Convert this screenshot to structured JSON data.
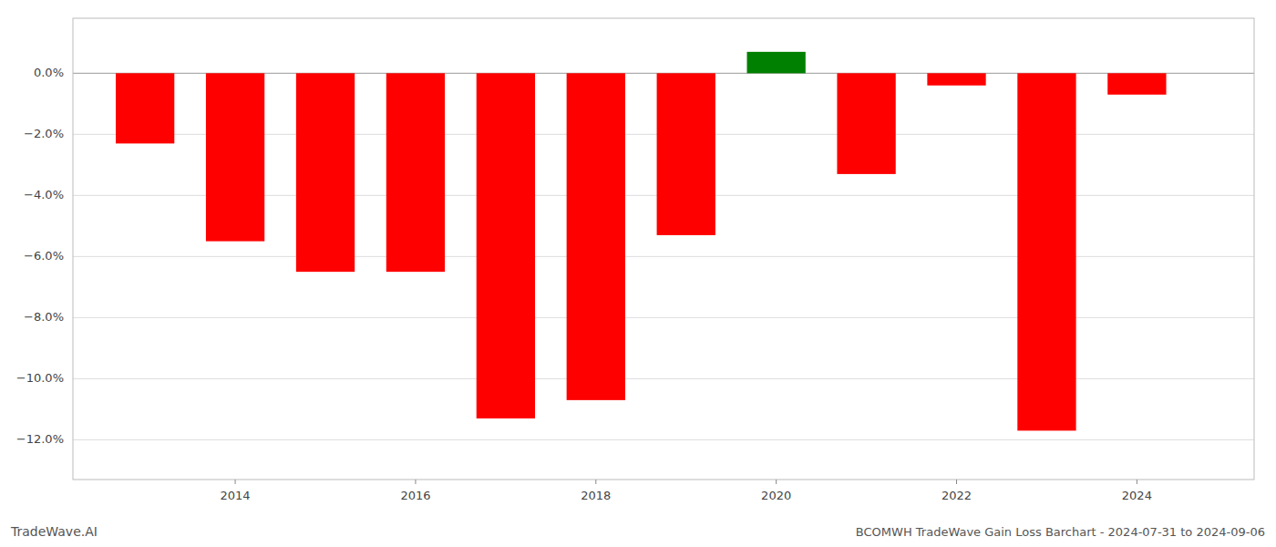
{
  "chart_data": {
    "type": "bar",
    "x": [
      2013,
      2014,
      2015,
      2016,
      2017,
      2018,
      2019,
      2020,
      2021,
      2022,
      2023,
      2024
    ],
    "values": [
      -0.023,
      -0.055,
      -0.065,
      -0.065,
      -0.113,
      -0.107,
      -0.053,
      0.007,
      -0.033,
      -0.004,
      -0.117,
      -0.007
    ],
    "colors": [
      "red",
      "red",
      "red",
      "red",
      "red",
      "red",
      "red",
      "green",
      "red",
      "red",
      "red",
      "red"
    ],
    "xlim": [
      2012.2,
      2025.3
    ],
    "xticks": [
      2014,
      2016,
      2018,
      2020,
      2022,
      2024
    ],
    "ylim": [
      -0.133,
      0.018
    ],
    "yticks": [
      {
        "value": 0.0,
        "label": "0.0%"
      },
      {
        "value": -0.02,
        "label": "−2.0%"
      },
      {
        "value": -0.04,
        "label": "−4.0%"
      },
      {
        "value": -0.06,
        "label": "−6.0%"
      },
      {
        "value": -0.08,
        "label": "−8.0%"
      },
      {
        "value": -0.1,
        "label": "−10.0%"
      },
      {
        "value": -0.12,
        "label": "−12.0%"
      }
    ],
    "grid": true,
    "annotations": [
      "TradeWave.AI",
      "BCOMWH TradeWave Gain Loss Barchart - 2024-07-31 to 2024-09-06"
    ]
  }
}
